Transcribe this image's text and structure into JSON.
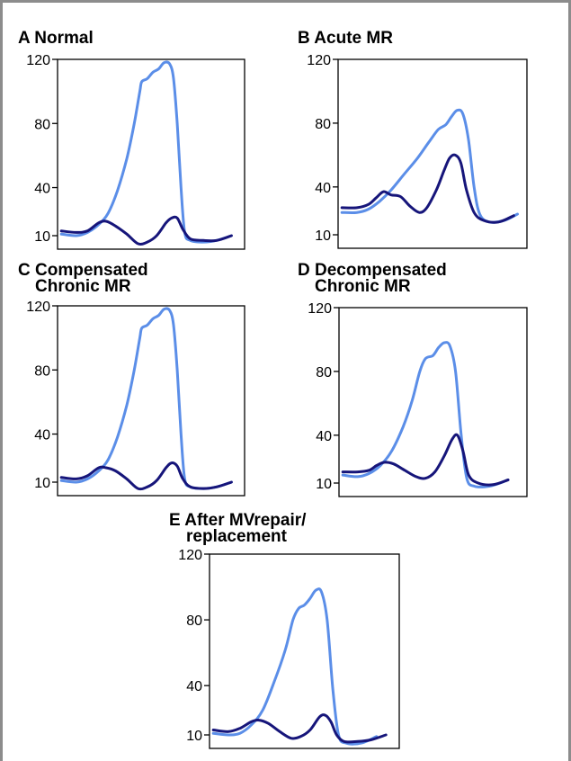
{
  "chart_data": [
    {
      "type": "line",
      "panel_letter": "A",
      "title_lines": [
        "Normal"
      ],
      "y_ticks": [
        10,
        40,
        80,
        120
      ],
      "ylim": [
        5,
        120
      ],
      "x_domain": [
        0,
        1
      ],
      "series": [
        {
          "color": "#5b8ee8",
          "points": [
            [
              0.02,
              11
            ],
            [
              0.1,
              10
            ],
            [
              0.16,
              12
            ],
            [
              0.22,
              17
            ],
            [
              0.27,
              24
            ],
            [
              0.32,
              38
            ],
            [
              0.37,
              58
            ],
            [
              0.41,
              80
            ],
            [
              0.44,
              100
            ],
            [
              0.45,
              106
            ],
            [
              0.48,
              108
            ],
            [
              0.51,
              112
            ],
            [
              0.54,
              114
            ],
            [
              0.57,
              118
            ],
            [
              0.6,
              117
            ],
            [
              0.62,
              108
            ],
            [
              0.64,
              80
            ],
            [
              0.66,
              40
            ],
            [
              0.68,
              12
            ],
            [
              0.71,
              7
            ],
            [
              0.78,
              6
            ],
            [
              0.85,
              7
            ],
            [
              0.93,
              10
            ]
          ]
        },
        {
          "color": "#16157a",
          "points": [
            [
              0.02,
              13
            ],
            [
              0.1,
              12
            ],
            [
              0.16,
              13
            ],
            [
              0.22,
              18
            ],
            [
              0.26,
              19
            ],
            [
              0.31,
              16
            ],
            [
              0.37,
              11
            ],
            [
              0.43,
              5
            ],
            [
              0.48,
              6
            ],
            [
              0.53,
              10
            ],
            [
              0.58,
              18
            ],
            [
              0.61,
              21
            ],
            [
              0.64,
              21
            ],
            [
              0.67,
              14
            ],
            [
              0.71,
              8
            ],
            [
              0.78,
              7
            ],
            [
              0.85,
              7
            ],
            [
              0.93,
              10
            ]
          ]
        }
      ]
    },
    {
      "type": "line",
      "panel_letter": "B",
      "title_lines": [
        "Acute MR"
      ],
      "y_ticks": [
        10,
        40,
        80,
        120
      ],
      "ylim": [
        5,
        120
      ],
      "x_domain": [
        0,
        1
      ],
      "series": [
        {
          "color": "#5b8ee8",
          "points": [
            [
              0.02,
              24
            ],
            [
              0.1,
              24
            ],
            [
              0.16,
              26
            ],
            [
              0.22,
              31
            ],
            [
              0.28,
              38
            ],
            [
              0.35,
              48
            ],
            [
              0.42,
              58
            ],
            [
              0.48,
              68
            ],
            [
              0.53,
              76
            ],
            [
              0.57,
              79
            ],
            [
              0.6,
              84
            ],
            [
              0.63,
              88
            ],
            [
              0.66,
              86
            ],
            [
              0.69,
              70
            ],
            [
              0.72,
              40
            ],
            [
              0.75,
              23
            ],
            [
              0.8,
              18
            ],
            [
              0.88,
              19
            ],
            [
              0.95,
              23
            ]
          ]
        },
        {
          "color": "#16157a",
          "points": [
            [
              0.02,
              27
            ],
            [
              0.1,
              27
            ],
            [
              0.16,
              29
            ],
            [
              0.2,
              33
            ],
            [
              0.24,
              37
            ],
            [
              0.28,
              35
            ],
            [
              0.33,
              34
            ],
            [
              0.38,
              28
            ],
            [
              0.43,
              24
            ],
            [
              0.47,
              27
            ],
            [
              0.52,
              38
            ],
            [
              0.56,
              50
            ],
            [
              0.59,
              58
            ],
            [
              0.62,
              60
            ],
            [
              0.65,
              55
            ],
            [
              0.68,
              38
            ],
            [
              0.72,
              24
            ],
            [
              0.77,
              19
            ],
            [
              0.85,
              18
            ],
            [
              0.93,
              22
            ]
          ]
        }
      ]
    },
    {
      "type": "line",
      "panel_letter": "C",
      "title_lines": [
        "Compensated",
        "Chronic MR"
      ],
      "y_ticks": [
        10,
        40,
        80,
        120
      ],
      "ylim": [
        5,
        120
      ],
      "x_domain": [
        0,
        1
      ],
      "series": [
        {
          "color": "#5b8ee8",
          "points": [
            [
              0.02,
              11
            ],
            [
              0.1,
              10
            ],
            [
              0.16,
              12
            ],
            [
              0.22,
              17
            ],
            [
              0.27,
              24
            ],
            [
              0.32,
              38
            ],
            [
              0.37,
              58
            ],
            [
              0.41,
              80
            ],
            [
              0.44,
              100
            ],
            [
              0.45,
              106
            ],
            [
              0.48,
              108
            ],
            [
              0.51,
              112
            ],
            [
              0.54,
              114
            ],
            [
              0.57,
              118
            ],
            [
              0.6,
              117
            ],
            [
              0.62,
              108
            ],
            [
              0.64,
              80
            ],
            [
              0.66,
              40
            ],
            [
              0.68,
              12
            ],
            [
              0.71,
              7
            ],
            [
              0.78,
              6
            ],
            [
              0.85,
              7
            ],
            [
              0.93,
              10
            ]
          ]
        },
        {
          "color": "#16157a",
          "points": [
            [
              0.02,
              13
            ],
            [
              0.1,
              12
            ],
            [
              0.16,
              14
            ],
            [
              0.22,
              19
            ],
            [
              0.26,
              19
            ],
            [
              0.31,
              17
            ],
            [
              0.37,
              12
            ],
            [
              0.43,
              6
            ],
            [
              0.48,
              7
            ],
            [
              0.53,
              11
            ],
            [
              0.58,
              19
            ],
            [
              0.61,
              22
            ],
            [
              0.64,
              20
            ],
            [
              0.67,
              12
            ],
            [
              0.71,
              7
            ],
            [
              0.78,
              6
            ],
            [
              0.85,
              7
            ],
            [
              0.93,
              10
            ]
          ]
        }
      ]
    },
    {
      "type": "line",
      "panel_letter": "D",
      "title_lines": [
        "Decompensated",
        "Chronic MR"
      ],
      "y_ticks": [
        10,
        40,
        80,
        120
      ],
      "ylim": [
        5,
        120
      ],
      "x_domain": [
        0,
        1
      ],
      "series": [
        {
          "color": "#5b8ee8",
          "points": [
            [
              0.02,
              15
            ],
            [
              0.1,
              14
            ],
            [
              0.16,
              16
            ],
            [
              0.22,
              21
            ],
            [
              0.28,
              30
            ],
            [
              0.34,
              45
            ],
            [
              0.39,
              62
            ],
            [
              0.43,
              80
            ],
            [
              0.46,
              88
            ],
            [
              0.5,
              90
            ],
            [
              0.53,
              95
            ],
            [
              0.56,
              98
            ],
            [
              0.59,
              96
            ],
            [
              0.62,
              80
            ],
            [
              0.65,
              40
            ],
            [
              0.68,
              13
            ],
            [
              0.72,
              8
            ],
            [
              0.8,
              8
            ],
            [
              0.88,
              11
            ]
          ]
        },
        {
          "color": "#16157a",
          "points": [
            [
              0.02,
              17
            ],
            [
              0.1,
              17
            ],
            [
              0.16,
              18
            ],
            [
              0.2,
              21
            ],
            [
              0.24,
              23
            ],
            [
              0.29,
              22
            ],
            [
              0.35,
              18
            ],
            [
              0.41,
              14
            ],
            [
              0.46,
              13
            ],
            [
              0.51,
              17
            ],
            [
              0.56,
              27
            ],
            [
              0.6,
              37
            ],
            [
              0.63,
              40
            ],
            [
              0.66,
              30
            ],
            [
              0.69,
              15
            ],
            [
              0.74,
              10
            ],
            [
              0.82,
              9
            ],
            [
              0.9,
              12
            ]
          ]
        }
      ]
    },
    {
      "type": "line",
      "panel_letter": "E",
      "title_lines": [
        "After MVrepair/",
        "replacement"
      ],
      "y_ticks": [
        10,
        40,
        80,
        120
      ],
      "ylim": [
        5,
        120
      ],
      "x_domain": [
        0,
        1
      ],
      "series": [
        {
          "color": "#5b8ee8",
          "points": [
            [
              0.02,
              11
            ],
            [
              0.1,
              10
            ],
            [
              0.16,
              11
            ],
            [
              0.22,
              16
            ],
            [
              0.28,
              25
            ],
            [
              0.34,
              42
            ],
            [
              0.4,
              62
            ],
            [
              0.44,
              80
            ],
            [
              0.47,
              87
            ],
            [
              0.5,
              89
            ],
            [
              0.53,
              93
            ],
            [
              0.56,
              98
            ],
            [
              0.59,
              97
            ],
            [
              0.62,
              80
            ],
            [
              0.65,
              38
            ],
            [
              0.68,
              10
            ],
            [
              0.72,
              5
            ],
            [
              0.8,
              5
            ],
            [
              0.88,
              9
            ]
          ]
        },
        {
          "color": "#16157a",
          "points": [
            [
              0.02,
              13
            ],
            [
              0.1,
              12
            ],
            [
              0.16,
              14
            ],
            [
              0.22,
              18
            ],
            [
              0.26,
              19
            ],
            [
              0.31,
              17
            ],
            [
              0.37,
              12
            ],
            [
              0.43,
              8
            ],
            [
              0.48,
              9
            ],
            [
              0.53,
              13
            ],
            [
              0.58,
              21
            ],
            [
              0.61,
              22
            ],
            [
              0.64,
              18
            ],
            [
              0.67,
              10
            ],
            [
              0.71,
              6
            ],
            [
              0.78,
              6
            ],
            [
              0.85,
              7
            ],
            [
              0.93,
              10
            ]
          ]
        }
      ]
    }
  ]
}
